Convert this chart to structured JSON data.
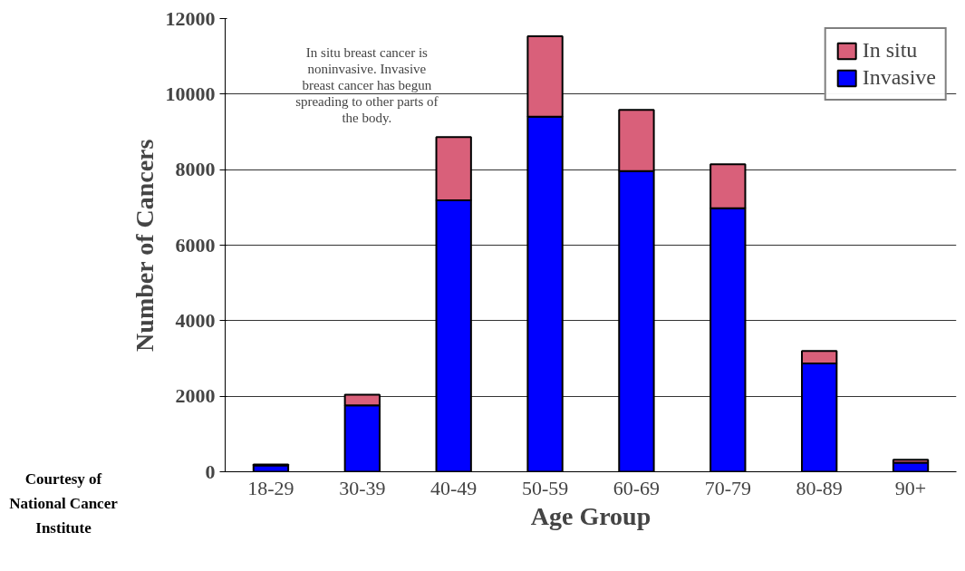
{
  "chart_data": {
    "type": "bar",
    "stacked": true,
    "xlabel": "Age Group",
    "ylabel": "Number of Cancers",
    "categories": [
      "18-29",
      "30-39",
      "40-49",
      "50-59",
      "60-69",
      "70-79",
      "80-89",
      "90+"
    ],
    "series": [
      {
        "name": "Invasive",
        "color": "#0000ff",
        "values": [
          170,
          1760,
          7190,
          9400,
          7960,
          6980,
          2870,
          240
        ]
      },
      {
        "name": "In situ",
        "color": "#d9607a",
        "values": [
          20,
          280,
          1670,
          2130,
          1620,
          1160,
          330,
          80
        ]
      }
    ],
    "ylim": [
      0,
      12000
    ],
    "yticks": [
      0,
      2000,
      4000,
      6000,
      8000,
      10000,
      12000
    ],
    "grid": "y",
    "legend": "top right",
    "annotations": [
      "In situ breast cancer is noninvasive. Invasive breast cancer has begun spreading to other parts of the body.",
      "Courtesy of National Cancer Institute"
    ]
  }
}
